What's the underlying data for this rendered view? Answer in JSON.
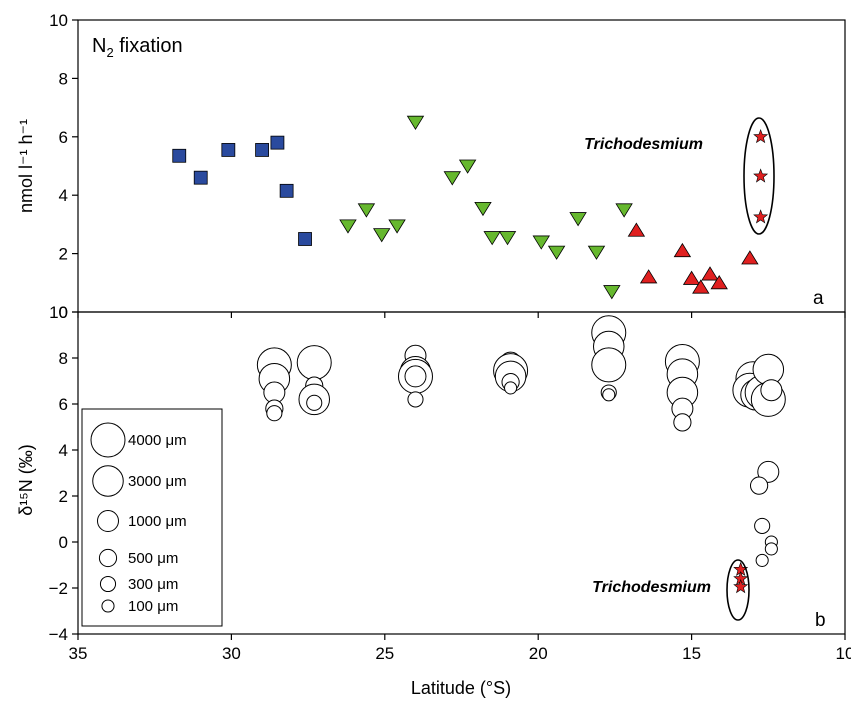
{
  "colors": {
    "squares": "#2a4a9e",
    "triangles_down": "#66b82e",
    "triangles_up": "#e02020",
    "stars": "#e02020",
    "frame": "#000000"
  },
  "chart_data": [
    {
      "type": "scatter",
      "panel_label": "a",
      "title": "N2 fixation",
      "title_parts": {
        "main": "N",
        "sub": "2",
        "rest": " fixation"
      },
      "ylabel": "nmol l⁻¹ h⁻¹",
      "xlabel": "",
      "xlim": [
        35,
        10
      ],
      "ylim": [
        0,
        10
      ],
      "x_ticks": [
        35,
        30,
        25,
        20,
        15,
        10
      ],
      "y_ticks": [
        0,
        2,
        4,
        6,
        8,
        10
      ],
      "x_tick_labels": [
        "",
        "",
        "",
        "",
        "",
        ""
      ],
      "y_tick_labels": [
        "0",
        "2",
        "4",
        "6",
        "8",
        "10"
      ],
      "annotation": "Trichodesmium",
      "series": [
        {
          "marker": "square",
          "color": "#2a4a9e",
          "points": [
            [
              31.7,
              5.35
            ],
            [
              31.0,
              4.6
            ],
            [
              30.1,
              5.55
            ],
            [
              29.0,
              5.55
            ],
            [
              28.5,
              5.8
            ],
            [
              28.2,
              4.15
            ],
            [
              27.6,
              2.5
            ]
          ]
        },
        {
          "marker": "triangle-down",
          "color": "#66b82e",
          "points": [
            [
              26.2,
              2.95
            ],
            [
              25.6,
              3.5
            ],
            [
              25.1,
              2.65
            ],
            [
              24.6,
              2.95
            ],
            [
              24.0,
              6.5
            ],
            [
              22.8,
              4.6
            ],
            [
              22.3,
              5.0
            ],
            [
              21.8,
              3.55
            ],
            [
              21.5,
              2.55
            ],
            [
              21.0,
              2.55
            ],
            [
              19.9,
              2.4
            ],
            [
              19.4,
              2.05
            ],
            [
              18.7,
              3.2
            ],
            [
              18.1,
              2.05
            ],
            [
              17.6,
              0.7
            ],
            [
              17.2,
              3.5
            ]
          ]
        },
        {
          "marker": "triangle-up",
          "color": "#e02020",
          "points": [
            [
              16.8,
              2.8
            ],
            [
              16.4,
              1.2
            ],
            [
              15.3,
              2.1
            ],
            [
              15.0,
              1.15
            ],
            [
              14.7,
              0.85
            ],
            [
              14.4,
              1.3
            ],
            [
              14.1,
              1.0
            ],
            [
              13.1,
              1.85
            ]
          ]
        },
        {
          "marker": "star",
          "color": "#e02020",
          "points": [
            [
              12.75,
              6.0
            ],
            [
              12.75,
              4.65
            ],
            [
              12.75,
              3.25
            ]
          ]
        }
      ]
    },
    {
      "type": "scatter",
      "panel_label": "b",
      "ylabel": "δ¹⁵N (‰)",
      "xlabel": "Latitude (°S)",
      "xlim": [
        35,
        10
      ],
      "ylim": [
        -4,
        10
      ],
      "x_ticks": [
        35,
        30,
        25,
        20,
        15,
        10
      ],
      "y_ticks": [
        -4,
        -2,
        0,
        2,
        4,
        6,
        8,
        10
      ],
      "x_tick_labels": [
        "35",
        "30",
        "25",
        "20",
        "15",
        "10"
      ],
      "y_tick_labels": [
        "−4",
        "−2",
        "0",
        "2",
        "4",
        "6",
        "8",
        "10"
      ],
      "annotation": "Trichodesmium",
      "legend": {
        "position": "bottom-left",
        "entries": [
          {
            "label": "4000 μm",
            "size": 4000
          },
          {
            "label": "3000 μm",
            "size": 3000
          },
          {
            "label": "1000 μm",
            "size": 1000
          },
          {
            "label": "500 μm",
            "size": 500
          },
          {
            "label": "300 μm",
            "size": 300
          },
          {
            "label": "100 μm",
            "size": 100
          }
        ]
      },
      "series": [
        {
          "marker": "bubble",
          "color": "#000000",
          "points": [
            {
              "x": 28.6,
              "y": 7.7,
              "size": 4000
            },
            {
              "x": 28.6,
              "y": 7.1,
              "size": 3000
            },
            {
              "x": 28.6,
              "y": 6.5,
              "size": 1000
            },
            {
              "x": 28.6,
              "y": 5.8,
              "size": 500
            },
            {
              "x": 28.6,
              "y": 5.6,
              "size": 300
            },
            {
              "x": 27.3,
              "y": 7.8,
              "size": 4000
            },
            {
              "x": 27.3,
              "y": 6.8,
              "size": 500
            },
            {
              "x": 27.3,
              "y": 6.3,
              "size": 1000
            },
            {
              "x": 27.3,
              "y": 6.2,
              "size": 3000
            },
            {
              "x": 27.3,
              "y": 6.05,
              "size": 300
            },
            {
              "x": 24.0,
              "y": 8.1,
              "size": 1000
            },
            {
              "x": 24.0,
              "y": 7.4,
              "size": 3000
            },
            {
              "x": 24.0,
              "y": 7.2,
              "size": 4000
            },
            {
              "x": 24.0,
              "y": 7.2,
              "size": 1000
            },
            {
              "x": 24.0,
              "y": 6.2,
              "size": 300
            },
            {
              "x": 20.9,
              "y": 7.8,
              "size": 1000
            },
            {
              "x": 20.9,
              "y": 7.45,
              "size": 4000
            },
            {
              "x": 20.9,
              "y": 7.2,
              "size": 3000
            },
            {
              "x": 20.9,
              "y": 6.95,
              "size": 500
            },
            {
              "x": 20.9,
              "y": 6.7,
              "size": 100
            },
            {
              "x": 17.7,
              "y": 9.1,
              "size": 4000
            },
            {
              "x": 17.7,
              "y": 8.5,
              "size": 3000
            },
            {
              "x": 17.7,
              "y": 7.7,
              "size": 4000
            },
            {
              "x": 17.7,
              "y": 6.5,
              "size": 300
            },
            {
              "x": 17.7,
              "y": 6.4,
              "size": 100
            },
            {
              "x": 15.3,
              "y": 7.85,
              "size": 4000
            },
            {
              "x": 15.3,
              "y": 7.6,
              "size": 100
            },
            {
              "x": 15.3,
              "y": 7.3,
              "size": 3000
            },
            {
              "x": 15.3,
              "y": 6.5,
              "size": 3000
            },
            {
              "x": 15.3,
              "y": 5.8,
              "size": 1000
            },
            {
              "x": 15.3,
              "y": 5.2,
              "size": 500
            },
            {
              "x": 13.0,
              "y": 7.1,
              "size": 4000
            },
            {
              "x": 13.1,
              "y": 6.6,
              "size": 4000
            },
            {
              "x": 12.9,
              "y": 6.4,
              "size": 3000
            },
            {
              "x": 12.7,
              "y": 6.5,
              "size": 4000
            },
            {
              "x": 12.5,
              "y": 7.5,
              "size": 3000
            },
            {
              "x": 12.5,
              "y": 6.2,
              "size": 4000
            },
            {
              "x": 12.4,
              "y": 6.6,
              "size": 1000
            },
            {
              "x": 12.5,
              "y": 3.05,
              "size": 1000
            },
            {
              "x": 12.8,
              "y": 2.45,
              "size": 500
            },
            {
              "x": 12.7,
              "y": 0.7,
              "size": 300
            },
            {
              "x": 12.4,
              "y": 0.0,
              "size": 100
            },
            {
              "x": 12.4,
              "y": -0.3,
              "size": 100
            },
            {
              "x": 12.7,
              "y": -0.8,
              "size": 100
            }
          ]
        },
        {
          "marker": "star",
          "color": "#e02020",
          "points": [
            {
              "x": 13.4,
              "y": -1.2
            },
            {
              "x": 13.4,
              "y": -1.6
            },
            {
              "x": 13.4,
              "y": -1.95
            }
          ]
        }
      ]
    }
  ]
}
